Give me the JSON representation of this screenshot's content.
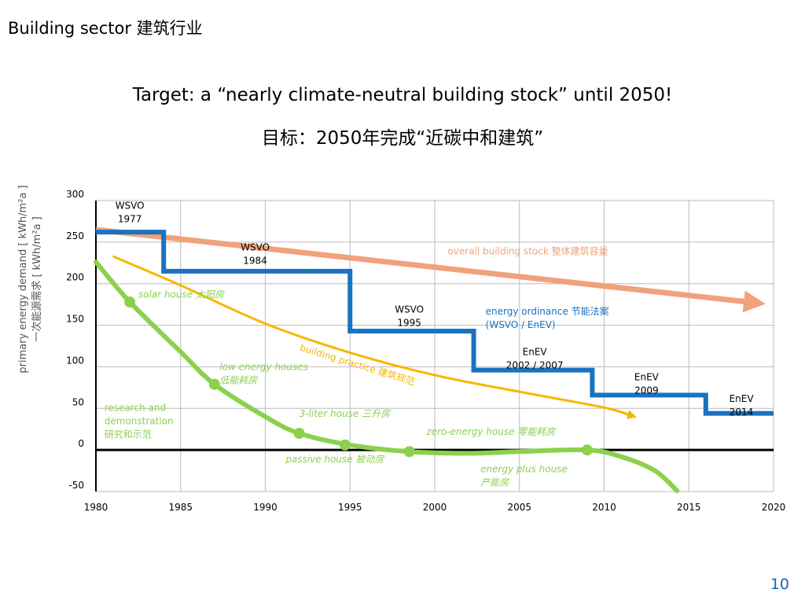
{
  "slide": {
    "title": "Building sector 建筑行业",
    "target_en": "Target: a  “nearly climate-neutral building stock”  until 2050!",
    "target_zh": "目标：2050年完成“近碳中和建筑”",
    "page_number": "10"
  },
  "colors": {
    "blue": "#1a73c1",
    "orange": "#f0a27a",
    "yellow": "#f5b800",
    "green": "#8cd14e",
    "axis": "#000000",
    "grid": "#bbbbbb"
  },
  "chart_data": {
    "type": "line",
    "title": "",
    "xlabel": "",
    "ylabel_lines": [
      "primary energy demand [ kWh/m²a ]",
      "一次能源需求 [ kWh/m²a ]"
    ],
    "xlim": [
      1980,
      2020
    ],
    "ylim": [
      -50,
      300
    ],
    "x_ticks": [
      1980,
      1985,
      1990,
      1995,
      2000,
      2005,
      2010,
      2015,
      2020
    ],
    "y_ticks": [
      300,
      250,
      200,
      150,
      100,
      50,
      0,
      -50
    ],
    "series": [
      {
        "name": "regulation",
        "style": "step",
        "points": [
          [
            1980,
            262
          ],
          [
            1984,
            262
          ],
          [
            1984,
            215
          ],
          [
            1995,
            215
          ],
          [
            1995,
            143
          ],
          [
            2002.3,
            143
          ],
          [
            2002.3,
            96
          ],
          [
            2009.3,
            96
          ],
          [
            2009.3,
            66
          ],
          [
            2016,
            66
          ],
          [
            2016,
            44
          ],
          [
            2020,
            44
          ]
        ]
      },
      {
        "name": "overall building stock",
        "style": "arrow",
        "points": [
          [
            1980,
            265
          ],
          [
            2018.5,
            178
          ]
        ]
      },
      {
        "name": "building practice",
        "style": "curve-arrow",
        "points": [
          [
            1981,
            233
          ],
          [
            1985,
            198
          ],
          [
            1990,
            152
          ],
          [
            1995,
            117
          ],
          [
            2000,
            90
          ],
          [
            2005,
            70
          ],
          [
            2010,
            51
          ],
          [
            2011.5,
            42
          ]
        ]
      },
      {
        "name": "research and demonstration",
        "style": "curve",
        "points": [
          [
            1980,
            226
          ],
          [
            1982,
            178
          ],
          [
            1985,
            118
          ],
          [
            1987,
            79
          ],
          [
            1990,
            40
          ],
          [
            1992,
            20
          ],
          [
            1995,
            6
          ],
          [
            1998.5,
            -2
          ],
          [
            2002,
            -4
          ],
          [
            2005,
            -2
          ],
          [
            2009,
            0
          ],
          [
            2011,
            -8
          ],
          [
            2013,
            -25
          ],
          [
            2014.3,
            -49
          ]
        ],
        "markers": [
          [
            1982,
            178
          ],
          [
            1987,
            79
          ],
          [
            1992,
            20
          ],
          [
            1994.7,
            6
          ],
          [
            1998.5,
            -2
          ],
          [
            2009,
            0
          ]
        ]
      }
    ],
    "annotations": [
      {
        "name": "wsvo-1977",
        "lines": [
          "WSVO",
          "1977"
        ],
        "x": 1982,
        "y": 290,
        "color": "#000000",
        "anchor": "middle"
      },
      {
        "name": "wsvo-1984",
        "lines": [
          "WSVO",
          "1984"
        ],
        "x": 1989.4,
        "y": 240,
        "color": "#000000",
        "anchor": "middle"
      },
      {
        "name": "wsvo-1995",
        "lines": [
          "WSVO",
          "1995"
        ],
        "x": 1998.5,
        "y": 165,
        "color": "#000000",
        "anchor": "middle"
      },
      {
        "name": "enev-2002-2007",
        "lines": [
          "EnEV",
          "2002 / 2007"
        ],
        "x": 2005.9,
        "y": 114,
        "color": "#000000",
        "anchor": "middle"
      },
      {
        "name": "enev-2009",
        "lines": [
          "EnEV",
          "2009"
        ],
        "x": 2012.5,
        "y": 84,
        "color": "#000000",
        "anchor": "middle"
      },
      {
        "name": "enev-2014",
        "lines": [
          "EnEV",
          "2014"
        ],
        "x": 2018.1,
        "y": 58,
        "color": "#000000",
        "anchor": "middle"
      },
      {
        "name": "overall-building-stock",
        "lines": [
          "overall building stock 整体建筑容量"
        ],
        "x": 2005.5,
        "y": 235,
        "color": "#f0a27a",
        "anchor": "middle"
      },
      {
        "name": "energy-ordinance",
        "lines": [
          "energy ordinance 节能法案",
          "(WSVO / EnEV)"
        ],
        "x": 2003,
        "y": 163,
        "color": "#1a73c1",
        "anchor": "start"
      },
      {
        "name": "solar-house",
        "lines": [
          "solar house 太阳房"
        ],
        "x": 1982.5,
        "y": 183,
        "color": "#8cd14e",
        "anchor": "start",
        "italic": true
      },
      {
        "name": "low-energy-houses",
        "lines": [
          "low energy houses",
          "低能耗房"
        ],
        "x": 1987.3,
        "y": 96,
        "color": "#8cd14e",
        "anchor": "start",
        "italic": true
      },
      {
        "name": "research-and-demonstration",
        "lines": [
          "research and",
          "demonstration",
          "研究和示范"
        ],
        "x": 1980.5,
        "y": 47,
        "color": "#8cd14e",
        "anchor": "start"
      },
      {
        "name": "three-liter-house",
        "lines": [
          "3-liter house 三升房"
        ],
        "x": 1992,
        "y": 40,
        "color": "#8cd14e",
        "anchor": "start",
        "italic": true
      },
      {
        "name": "zero-energy-house",
        "lines": [
          "zero-energy house 零能耗房"
        ],
        "x": 1999.5,
        "y": 18,
        "color": "#8cd14e",
        "anchor": "start",
        "italic": true
      },
      {
        "name": "passive-house",
        "lines": [
          "passive house 被动房"
        ],
        "x": 1991.2,
        "y": -15,
        "color": "#8cd14e",
        "anchor": "start",
        "italic": true
      },
      {
        "name": "energy-plus-house",
        "lines": [
          "energy plus house",
          "产能房"
        ],
        "x": 2002.7,
        "y": -27,
        "color": "#8cd14e",
        "anchor": "start",
        "italic": true
      },
      {
        "name": "building-practice",
        "lines": [
          "building practice 建筑规范"
        ],
        "x": 1992,
        "y": 120,
        "color": "#f5b800",
        "anchor": "start",
        "rotate": 17
      }
    ]
  }
}
